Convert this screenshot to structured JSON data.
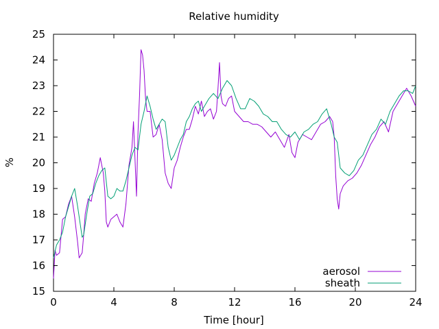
{
  "chart_data": {
    "type": "line",
    "title": "Relative humidity",
    "xlabel": "Time [hour]",
    "ylabel": "%",
    "xlim": [
      0,
      24
    ],
    "ylim": [
      15,
      25
    ],
    "xticks": [
      0,
      4,
      8,
      12,
      16,
      20,
      24
    ],
    "yticks": [
      15,
      16,
      17,
      18,
      19,
      20,
      21,
      22,
      23,
      24,
      25
    ],
    "grid": false,
    "legend_position": "bottom-right",
    "series": [
      {
        "name": "aerosol",
        "color": "#9400d3",
        "x": [
          0,
          0.1,
          0.2,
          0.4,
          0.6,
          0.8,
          1.0,
          1.2,
          1.4,
          1.6,
          1.7,
          1.8,
          1.9,
          2.0,
          2.1,
          2.3,
          2.5,
          2.7,
          2.9,
          3.0,
          3.1,
          3.3,
          3.4,
          3.5,
          3.6,
          3.8,
          4.0,
          4.2,
          4.4,
          4.6,
          4.8,
          5.0,
          5.2,
          5.3,
          5.5,
          5.6,
          5.7,
          5.8,
          5.9,
          6.0,
          6.1,
          6.2,
          6.4,
          6.6,
          6.8,
          7.0,
          7.2,
          7.4,
          7.6,
          7.8,
          8.0,
          8.2,
          8.4,
          8.6,
          8.8,
          9.0,
          9.2,
          9.4,
          9.6,
          9.8,
          10.0,
          10.2,
          10.4,
          10.6,
          10.8,
          10.9,
          11.0,
          11.1,
          11.2,
          11.4,
          11.6,
          11.8,
          12.0,
          12.3,
          12.6,
          12.9,
          13.2,
          13.5,
          13.8,
          14.1,
          14.4,
          14.7,
          15.0,
          15.3,
          15.6,
          15.8,
          16.0,
          16.2,
          16.5,
          16.8,
          17.1,
          17.4,
          17.7,
          18.0,
          18.3,
          18.5,
          18.6,
          18.7,
          18.8,
          18.9,
          19.0,
          19.2,
          19.5,
          19.8,
          20.1,
          20.4,
          20.7,
          21.0,
          21.3,
          21.6,
          21.9,
          22.2,
          22.5,
          22.8,
          23.1,
          23.4,
          23.7,
          24.0
        ],
        "values": [
          15.5,
          16.6,
          16.4,
          16.5,
          17.8,
          17.9,
          18.4,
          18.7,
          17.9,
          16.9,
          16.3,
          16.4,
          16.5,
          17.2,
          18.0,
          18.6,
          18.5,
          19.2,
          19.6,
          19.9,
          20.2,
          19.6,
          18.9,
          17.7,
          17.5,
          17.8,
          17.9,
          18.0,
          17.7,
          17.5,
          18.4,
          19.9,
          20.6,
          21.6,
          18.7,
          21.2,
          22.6,
          24.4,
          24.2,
          23.6,
          22.5,
          22.0,
          22.0,
          21.0,
          21.1,
          21.5,
          20.9,
          19.6,
          19.2,
          19.0,
          19.8,
          20.1,
          20.6,
          21.0,
          21.3,
          21.3,
          21.7,
          22.2,
          21.9,
          22.4,
          21.8,
          22.0,
          22.1,
          21.7,
          22.0,
          22.9,
          23.9,
          22.6,
          22.3,
          22.2,
          22.5,
          22.6,
          22.0,
          21.8,
          21.6,
          21.6,
          21.5,
          21.5,
          21.4,
          21.2,
          21.0,
          21.2,
          20.9,
          20.6,
          21.1,
          20.4,
          20.2,
          20.8,
          21.1,
          21.0,
          20.9,
          21.2,
          21.5,
          21.6,
          21.8,
          21.6,
          21.0,
          19.5,
          18.6,
          18.2,
          18.8,
          19.1,
          19.3,
          19.4,
          19.6,
          19.9,
          20.3,
          20.7,
          21.0,
          21.4,
          21.6,
          21.2,
          22.0,
          22.3,
          22.6,
          22.9,
          22.6,
          22.2
        ]
      },
      {
        "name": "sheath",
        "color": "#009e73",
        "x": [
          0,
          0.2,
          0.4,
          0.6,
          0.8,
          1.0,
          1.2,
          1.4,
          1.6,
          1.8,
          1.9,
          2.0,
          2.2,
          2.4,
          2.6,
          2.8,
          3.0,
          3.2,
          3.4,
          3.6,
          3.8,
          4.0,
          4.2,
          4.4,
          4.6,
          4.8,
          5.0,
          5.2,
          5.4,
          5.6,
          5.8,
          6.0,
          6.2,
          6.4,
          6.6,
          6.8,
          7.0,
          7.2,
          7.4,
          7.6,
          7.8,
          8.0,
          8.2,
          8.4,
          8.6,
          8.8,
          9.0,
          9.2,
          9.4,
          9.6,
          9.8,
          10.0,
          10.3,
          10.6,
          10.9,
          11.2,
          11.5,
          11.8,
          12.1,
          12.4,
          12.7,
          13.0,
          13.3,
          13.6,
          13.9,
          14.2,
          14.5,
          14.8,
          15.1,
          15.4,
          15.7,
          16.0,
          16.3,
          16.6,
          16.9,
          17.2,
          17.5,
          17.8,
          18.1,
          18.4,
          18.6,
          18.8,
          19.0,
          19.3,
          19.6,
          19.9,
          20.2,
          20.5,
          20.8,
          21.1,
          21.4,
          21.7,
          22.0,
          22.3,
          22.6,
          22.9,
          23.2,
          23.5,
          23.8,
          24.0
        ],
        "values": [
          16.3,
          16.8,
          17.0,
          17.3,
          17.9,
          18.3,
          18.7,
          19.0,
          18.3,
          17.5,
          17.1,
          17.2,
          18.0,
          18.7,
          18.8,
          19.2,
          19.5,
          19.7,
          19.8,
          18.7,
          18.6,
          18.7,
          19.0,
          18.9,
          18.9,
          19.3,
          19.8,
          20.3,
          20.6,
          20.5,
          21.5,
          22.0,
          22.6,
          22.2,
          21.7,
          21.3,
          21.5,
          21.7,
          21.6,
          20.6,
          20.1,
          20.3,
          20.6,
          20.9,
          21.1,
          21.6,
          21.8,
          22.1,
          22.3,
          22.4,
          22.0,
          22.2,
          22.5,
          22.7,
          22.5,
          22.9,
          23.2,
          23.0,
          22.5,
          22.1,
          22.1,
          22.5,
          22.4,
          22.2,
          21.9,
          21.8,
          21.6,
          21.6,
          21.3,
          21.1,
          21.0,
          21.2,
          20.9,
          21.2,
          21.3,
          21.5,
          21.6,
          21.9,
          22.1,
          21.5,
          21.0,
          20.8,
          19.8,
          19.6,
          19.5,
          19.7,
          20.1,
          20.3,
          20.7,
          21.1,
          21.3,
          21.7,
          21.5,
          22.0,
          22.3,
          22.6,
          22.8,
          22.8,
          22.7,
          23.0
        ]
      }
    ]
  }
}
